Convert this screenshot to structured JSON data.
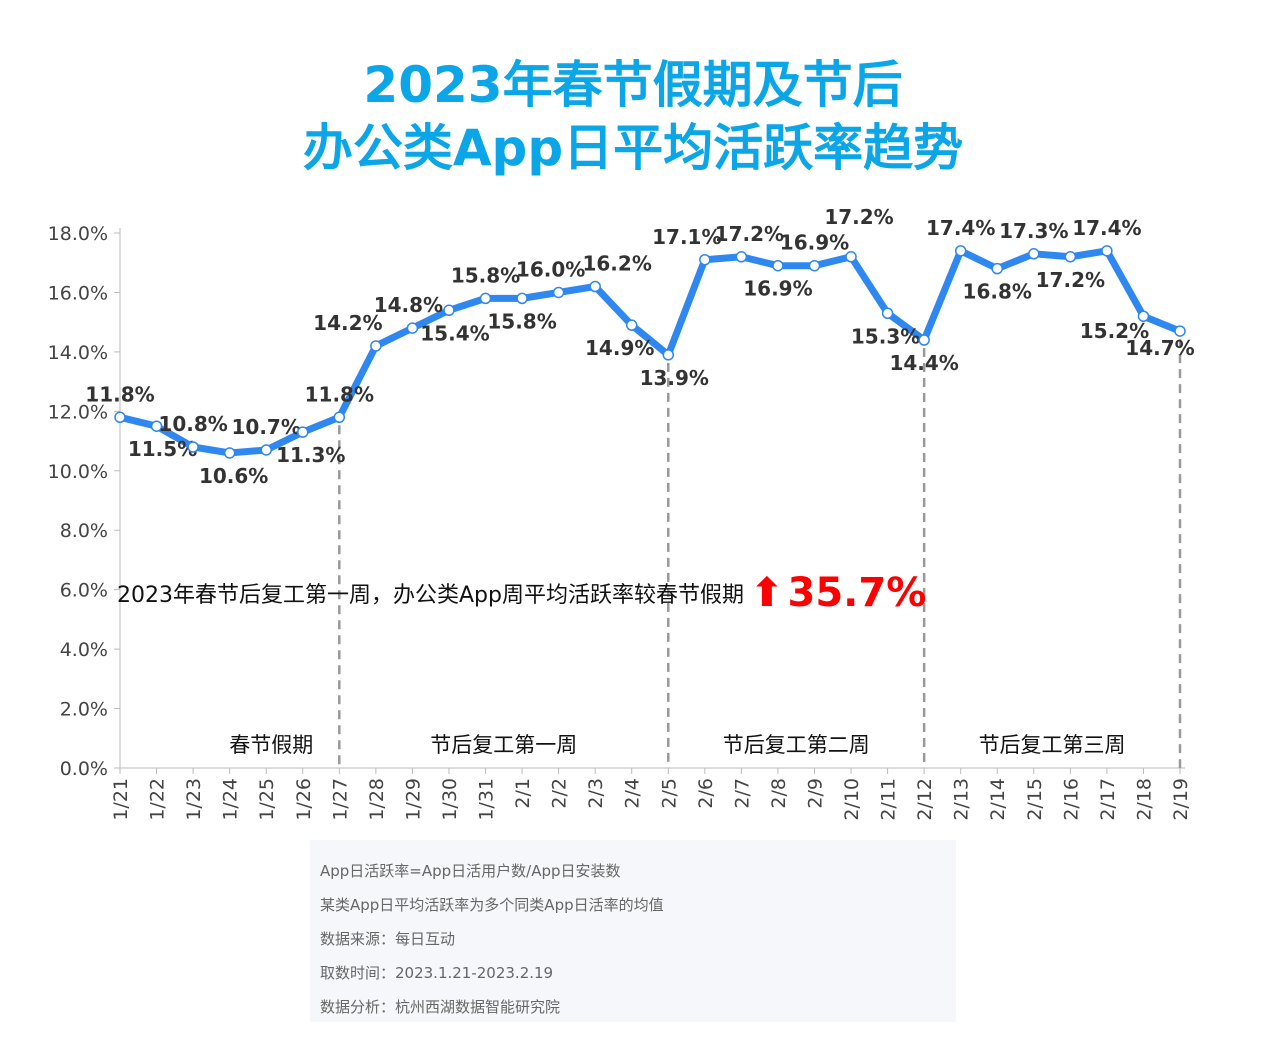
{
  "title_line1": "2023年春节假期及节后",
  "title_line2": "办公类App日平均活跃率趋势",
  "annotation": {
    "text": "2023年春节后复工第一周，办公类App周平均活跃率较春节假期",
    "icon": "up-arrow-icon",
    "value": "35.7%",
    "color": "#ff0000"
  },
  "footnotes": [
    "App日活跃率=App日活用户数/App日安装数",
    "某类App日平均活跃率为多个同类App日活率的均值",
    "数据来源：每日互动",
    "取数时间：2023.1.21-2023.2.19",
    "数据分析：杭州西湖数据智能研究院"
  ],
  "chart_data": {
    "type": "line",
    "title": "2023年春节假期及节后办公类App日平均活跃率趋势",
    "x": [
      "1/21",
      "1/22",
      "1/23",
      "1/24",
      "1/25",
      "1/26",
      "1/27",
      "1/28",
      "1/29",
      "1/30",
      "1/31",
      "2/1",
      "2/2",
      "2/3",
      "2/4",
      "2/5",
      "2/6",
      "2/7",
      "2/8",
      "2/9",
      "2/10",
      "2/11",
      "2/12",
      "2/13",
      "2/14",
      "2/15",
      "2/16",
      "2/17",
      "2/18",
      "2/19"
    ],
    "series": [
      {
        "values": [
          11.8,
          11.5,
          10.8,
          10.6,
          10.7,
          11.3,
          11.8,
          14.2,
          14.8,
          15.4,
          15.8,
          15.8,
          16.0,
          16.2,
          14.9,
          13.9,
          17.1,
          17.2,
          16.9,
          16.9,
          17.2,
          15.3,
          14.4,
          17.4,
          16.8,
          17.3,
          17.2,
          17.4,
          15.2,
          14.7
        ]
      }
    ],
    "yticks": [
      "0.0%",
      "2.0%",
      "4.0%",
      "6.0%",
      "8.0%",
      "10.0%",
      "12.0%",
      "14.0%",
      "16.0%",
      "18.0%"
    ],
    "ylim": [
      0,
      18
    ],
    "line_color": "#2f87f0",
    "grid": false,
    "periods": [
      {
        "label": "春节假期",
        "end": "1/27"
      },
      {
        "label": "节后复工第一周",
        "end": "2/5"
      },
      {
        "label": "节后复工第二周",
        "end": "2/12"
      },
      {
        "label": "节后复工第三周",
        "end": "2/19"
      }
    ]
  }
}
